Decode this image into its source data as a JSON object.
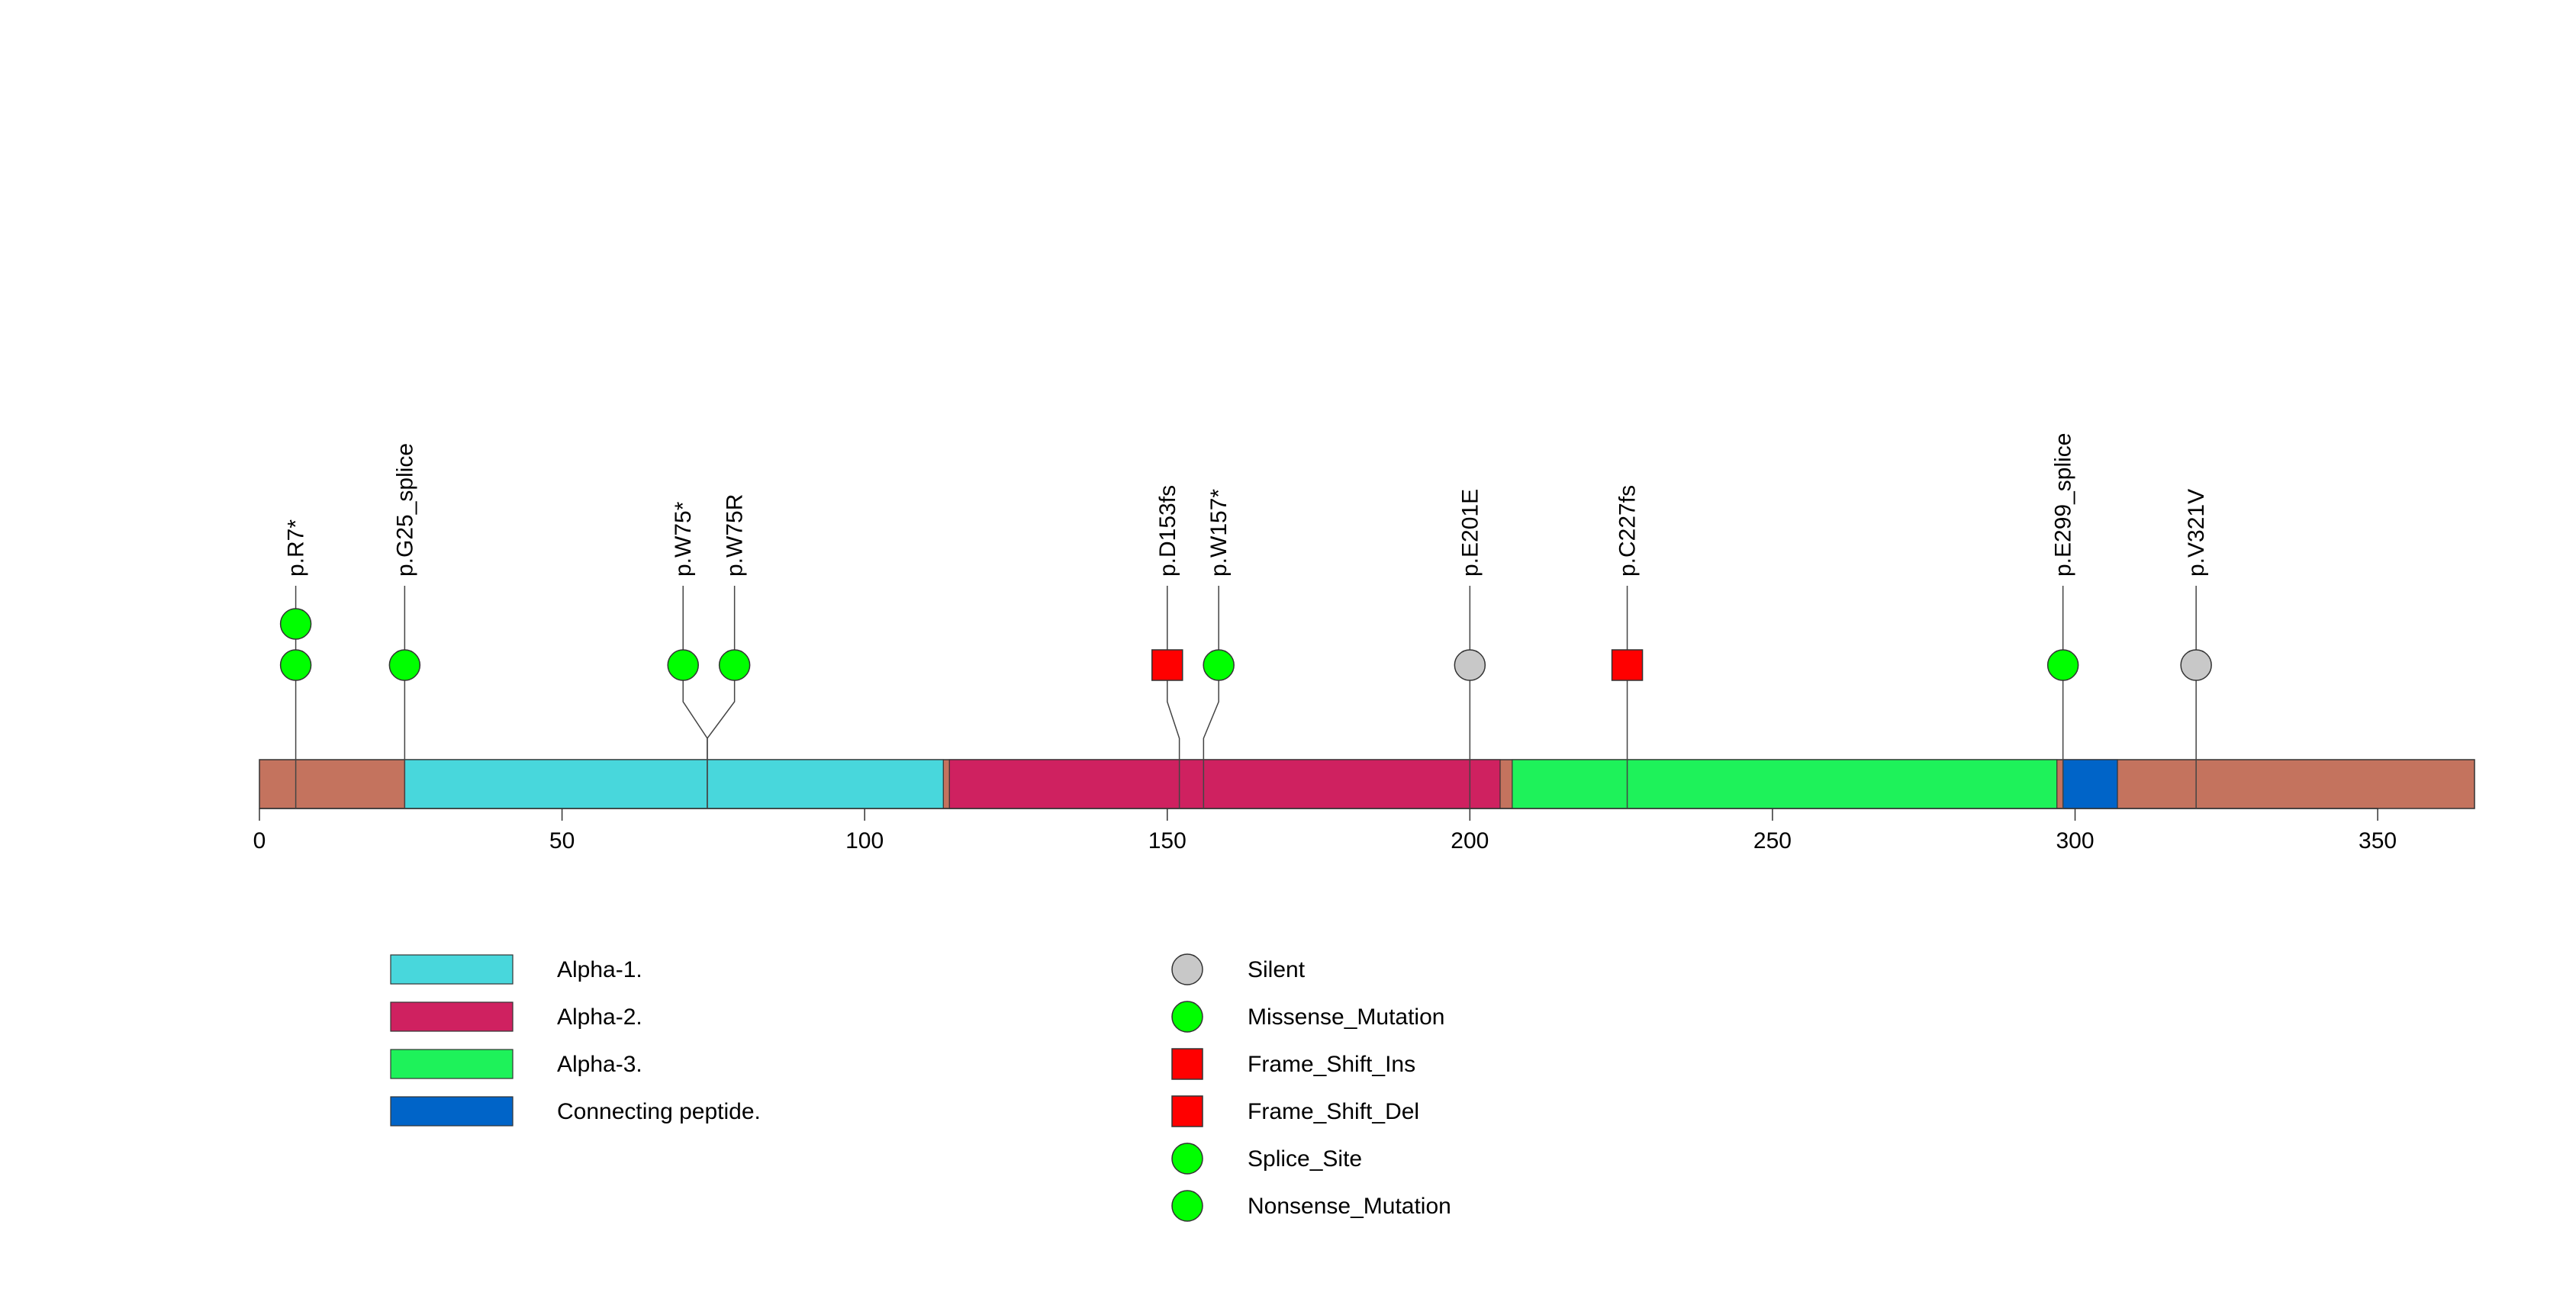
{
  "chart_data": {
    "type": "lollipop",
    "title": "",
    "xlabel": "",
    "ylabel": "",
    "xlim": [
      0,
      366
    ],
    "protein_length": 366,
    "ticks": [
      0,
      50,
      100,
      150,
      200,
      250,
      300,
      350
    ],
    "backbone_color": "#C4735E",
    "domains": [
      {
        "name": "Alpha-1.",
        "start": 24,
        "end": 113,
        "color": "#48D7DC"
      },
      {
        "name": "Alpha-2.",
        "start": 114,
        "end": 205,
        "color": "#CF2160"
      },
      {
        "name": "Alpha-3.",
        "start": 207,
        "end": 297,
        "color": "#1EF25A"
      },
      {
        "name": "Connecting peptide.",
        "start": 298,
        "end": 307,
        "color": "#0064C8"
      }
    ],
    "mutations": [
      {
        "label": "p.R7*",
        "position": 6,
        "label_x": 6,
        "count": 2,
        "type": "Nonsense_Mutation"
      },
      {
        "label": "p.G25_splice",
        "position": 24,
        "label_x": 24,
        "count": 1,
        "type": "Splice_Site"
      },
      {
        "label": "p.W75*",
        "position": 74,
        "label_x": 70,
        "count": 1,
        "type": "Nonsense_Mutation"
      },
      {
        "label": "p.W75R",
        "position": 74,
        "label_x": 78.5,
        "count": 1,
        "type": "Missense_Mutation"
      },
      {
        "label": "p.D153fs",
        "position": 152,
        "label_x": 150,
        "count": 1,
        "type": "Frame_Shift_Del"
      },
      {
        "label": "p.W157*",
        "position": 156,
        "label_x": 158.5,
        "count": 1,
        "type": "Nonsense_Mutation"
      },
      {
        "label": "p.E201E",
        "position": 200,
        "label_x": 200,
        "count": 1,
        "type": "Silent"
      },
      {
        "label": "p.C227fs",
        "position": 226,
        "label_x": 226,
        "count": 1,
        "type": "Frame_Shift_Ins"
      },
      {
        "label": "p.E299_splice",
        "position": 298,
        "label_x": 298,
        "count": 1,
        "type": "Splice_Site"
      },
      {
        "label": "p.V321V",
        "position": 320,
        "label_x": 320,
        "count": 1,
        "type": "Silent"
      }
    ],
    "domain_legend": [
      "Alpha-1.",
      "Alpha-2.",
      "Alpha-3.",
      "Connecting peptide."
    ],
    "mutation_legend": [
      {
        "label": "Silent",
        "shape": "circle",
        "color": "#C8C8C8"
      },
      {
        "label": "Missense_Mutation",
        "shape": "circle",
        "color": "#00FF00"
      },
      {
        "label": "Frame_Shift_Ins",
        "shape": "square",
        "color": "#FF0000"
      },
      {
        "label": "Frame_Shift_Del",
        "shape": "square",
        "color": "#FF0000"
      },
      {
        "label": "Splice_Site",
        "shape": "circle",
        "color": "#00FF00"
      },
      {
        "label": "Nonsense_Mutation",
        "shape": "circle",
        "color": "#00FF00"
      }
    ],
    "type_colors": {
      "Silent": "#C8C8C8",
      "Missense_Mutation": "#00FF00",
      "Frame_Shift_Ins": "#FF0000",
      "Frame_Shift_Del": "#FF0000",
      "Splice_Site": "#00FF00",
      "Nonsense_Mutation": "#00FF00"
    },
    "type_shapes": {
      "Silent": "circle",
      "Missense_Mutation": "circle",
      "Frame_Shift_Ins": "square",
      "Frame_Shift_Del": "square",
      "Splice_Site": "circle",
      "Nonsense_Mutation": "circle"
    }
  }
}
